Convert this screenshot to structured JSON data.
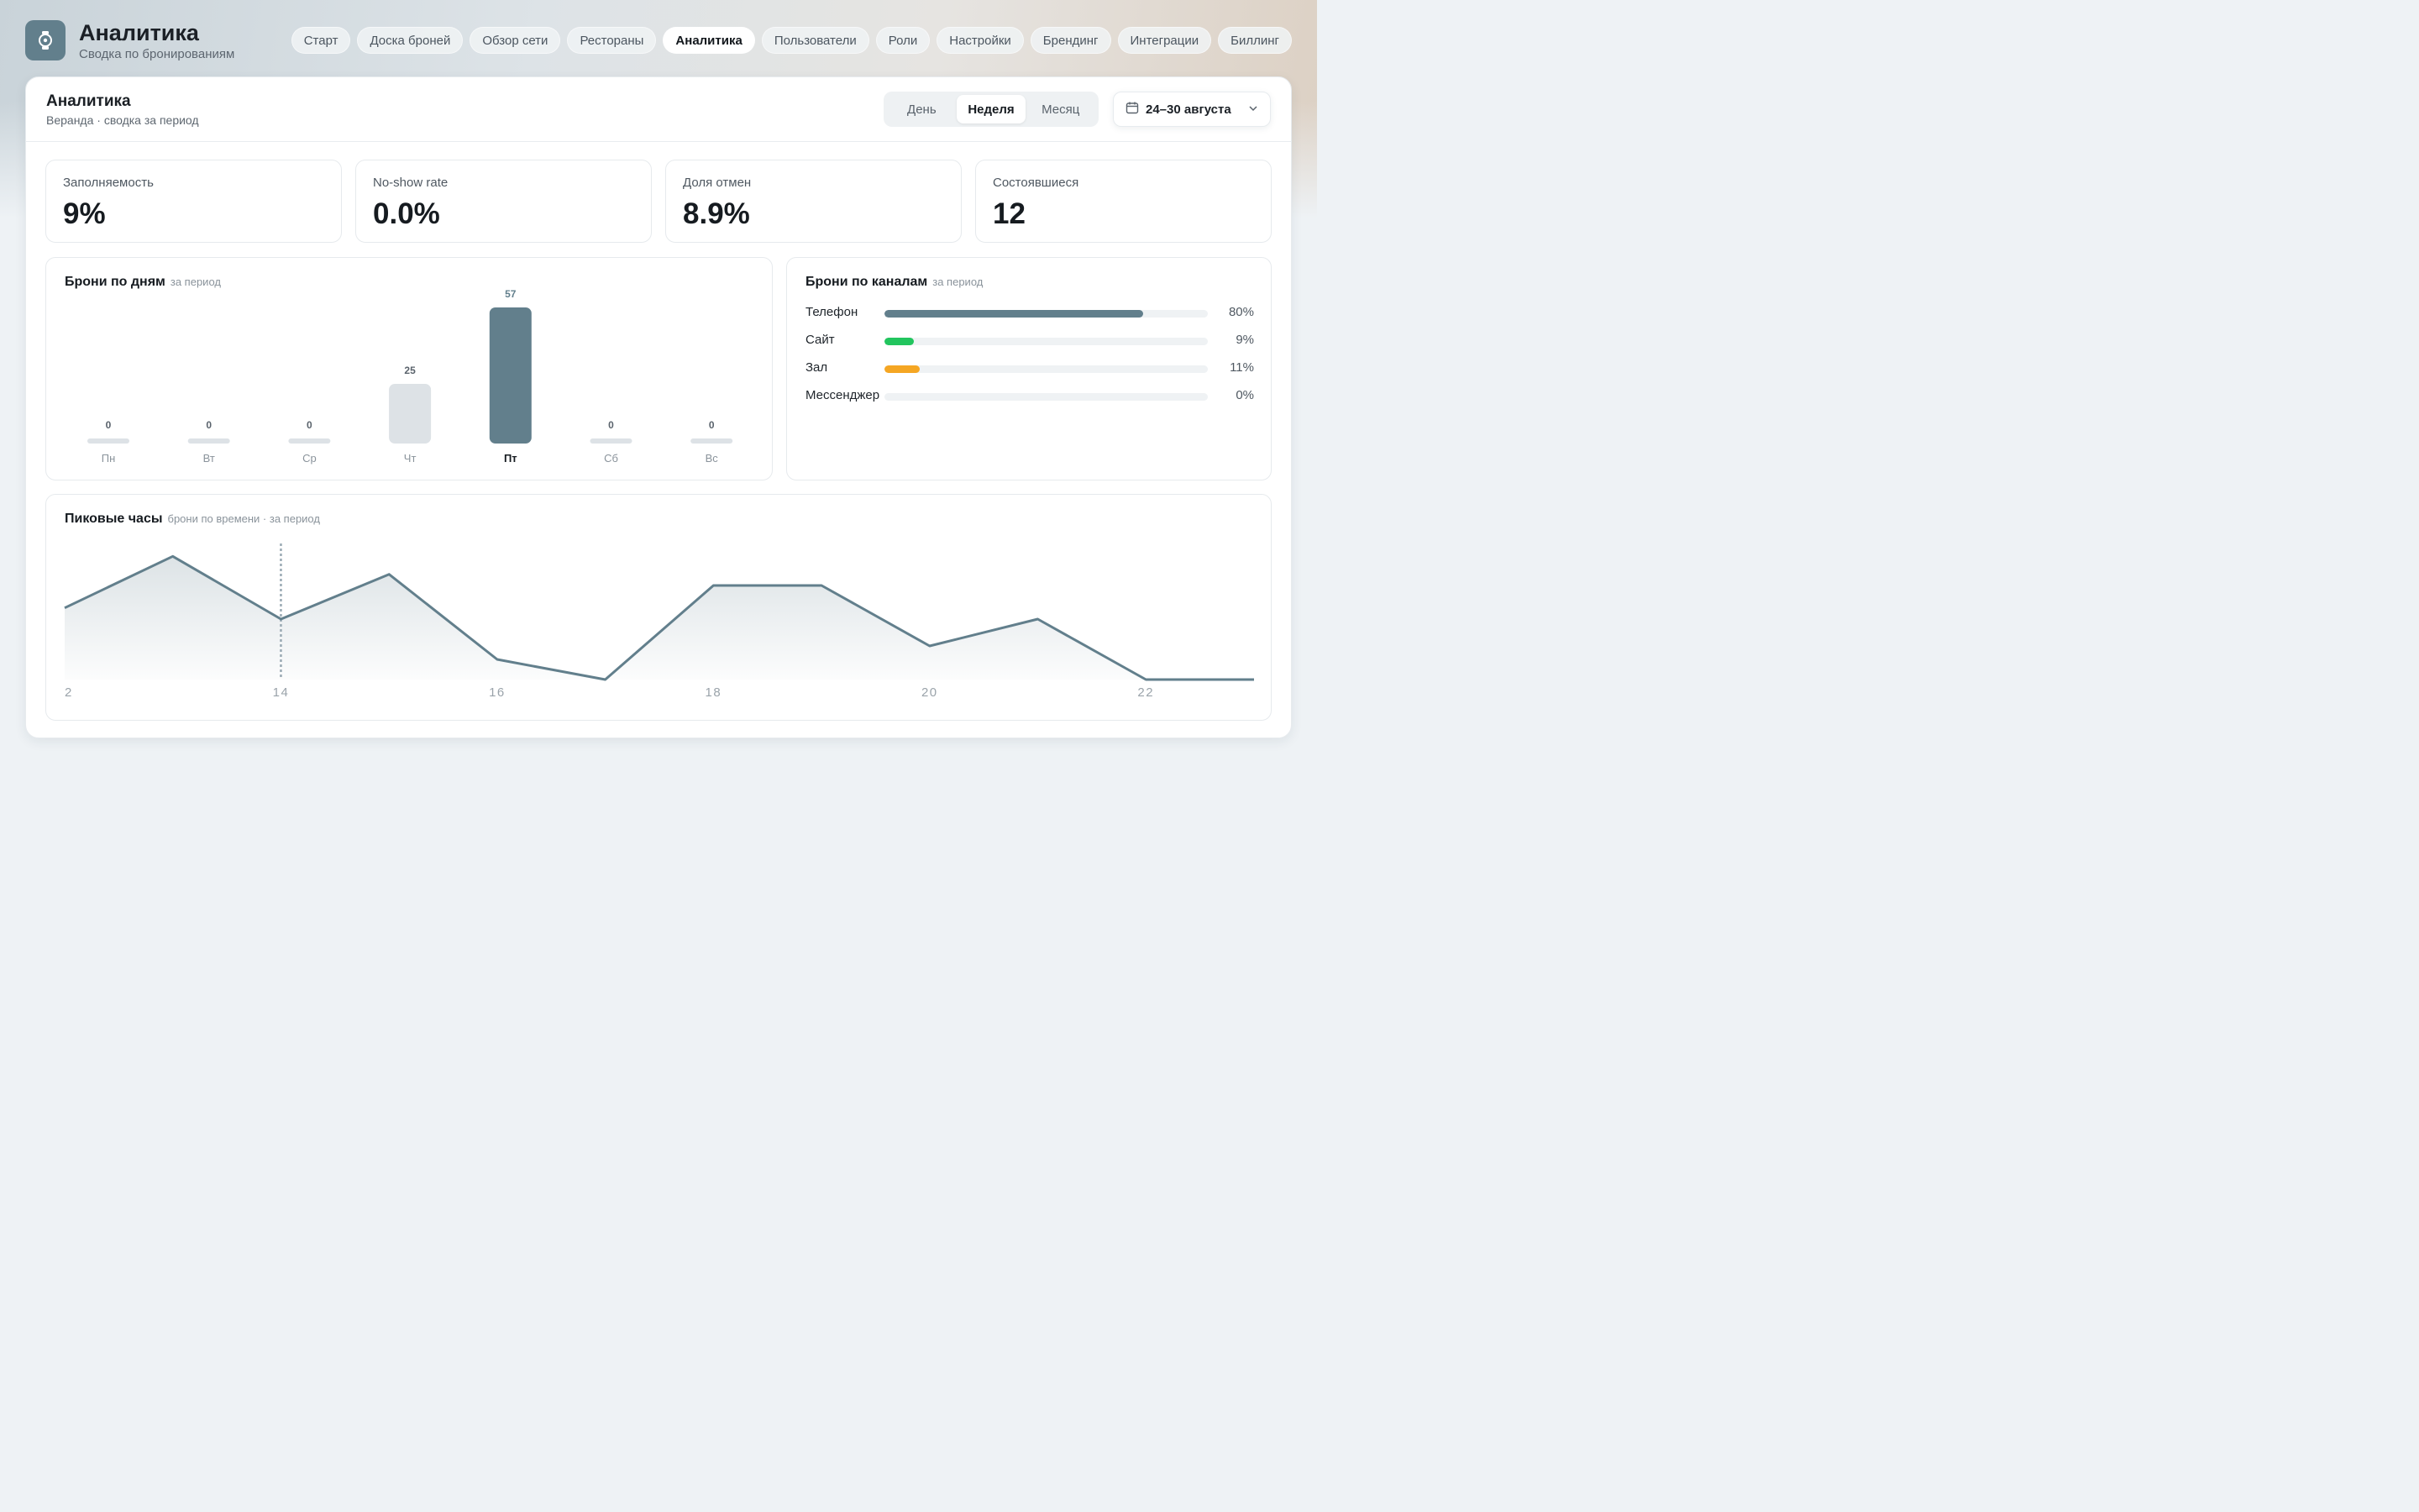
{
  "app": {
    "title": "Аналитика",
    "subtitle": "Сводка по бронированиям",
    "logo_icon": "watch-icon"
  },
  "nav": {
    "tabs": [
      {
        "label": "Старт"
      },
      {
        "label": "Доска броней"
      },
      {
        "label": "Обзор сети"
      },
      {
        "label": "Рестораны"
      },
      {
        "label": "Аналитика",
        "active": true
      },
      {
        "label": "Пользователи"
      },
      {
        "label": "Роли"
      },
      {
        "label": "Настройки"
      },
      {
        "label": "Брендинг"
      },
      {
        "label": "Интеграции"
      },
      {
        "label": "Биллинг"
      }
    ]
  },
  "header": {
    "title": "Аналитика",
    "subtitle": "Веранда · сводка за период",
    "period_options": [
      "День",
      "Неделя",
      "Месяц"
    ],
    "period_selected": "Неделя",
    "date_range": "24–30 августа"
  },
  "kpis": [
    {
      "label": "Заполняемость",
      "value": "9%"
    },
    {
      "label": "No-show rate",
      "value": "0.0%"
    },
    {
      "label": "Доля отмен",
      "value": "8.9%"
    },
    {
      "label": "Состоявшиеся",
      "value": "12"
    }
  ],
  "bookings_by_day": {
    "title": "Брони по дням",
    "hint": "за период"
  },
  "channels": {
    "title": "Брони по каналам",
    "hint": "за период",
    "items": [
      {
        "name": "Телефон",
        "percent": 80,
        "label": "80%",
        "color": "#627f8c"
      },
      {
        "name": "Сайт",
        "percent": 9,
        "label": "9%",
        "color": "#22c55e"
      },
      {
        "name": "Зал",
        "percent": 11,
        "label": "11%",
        "color": "#f5a623"
      },
      {
        "name": "Мессенджер",
        "percent": 0,
        "label": "0%",
        "color": "#c4ccd2"
      }
    ]
  },
  "peak_hours": {
    "title": "Пиковые часы",
    "hint": "брони по времени · за период"
  },
  "colors": {
    "accent": "#627f8c",
    "bar_muted": "#dde2e6",
    "text_dark": "#161b20"
  },
  "chart_data": [
    {
      "type": "bar",
      "title": "Брони по дням",
      "categories": [
        "Пн",
        "Вт",
        "Ср",
        "Чт",
        "Пт",
        "Сб",
        "Вс"
      ],
      "values": [
        0,
        0,
        0,
        25,
        57,
        0,
        0
      ],
      "highlight_category": "Пт",
      "ylim": [
        0,
        57
      ]
    },
    {
      "type": "area",
      "title": "Пиковые часы",
      "x": [
        12,
        13,
        14,
        15,
        16,
        17,
        18,
        19,
        20,
        21,
        22,
        23
      ],
      "values": [
        3.2,
        5.5,
        2.7,
        4.7,
        0.9,
        0.0,
        4.2,
        4.2,
        1.5,
        2.7,
        0.0,
        0.0
      ],
      "x_tick_labels": [
        "2",
        "14",
        "16",
        "18",
        "20",
        "22"
      ],
      "marker_x": 14,
      "ylim": [
        0,
        6
      ]
    }
  ]
}
